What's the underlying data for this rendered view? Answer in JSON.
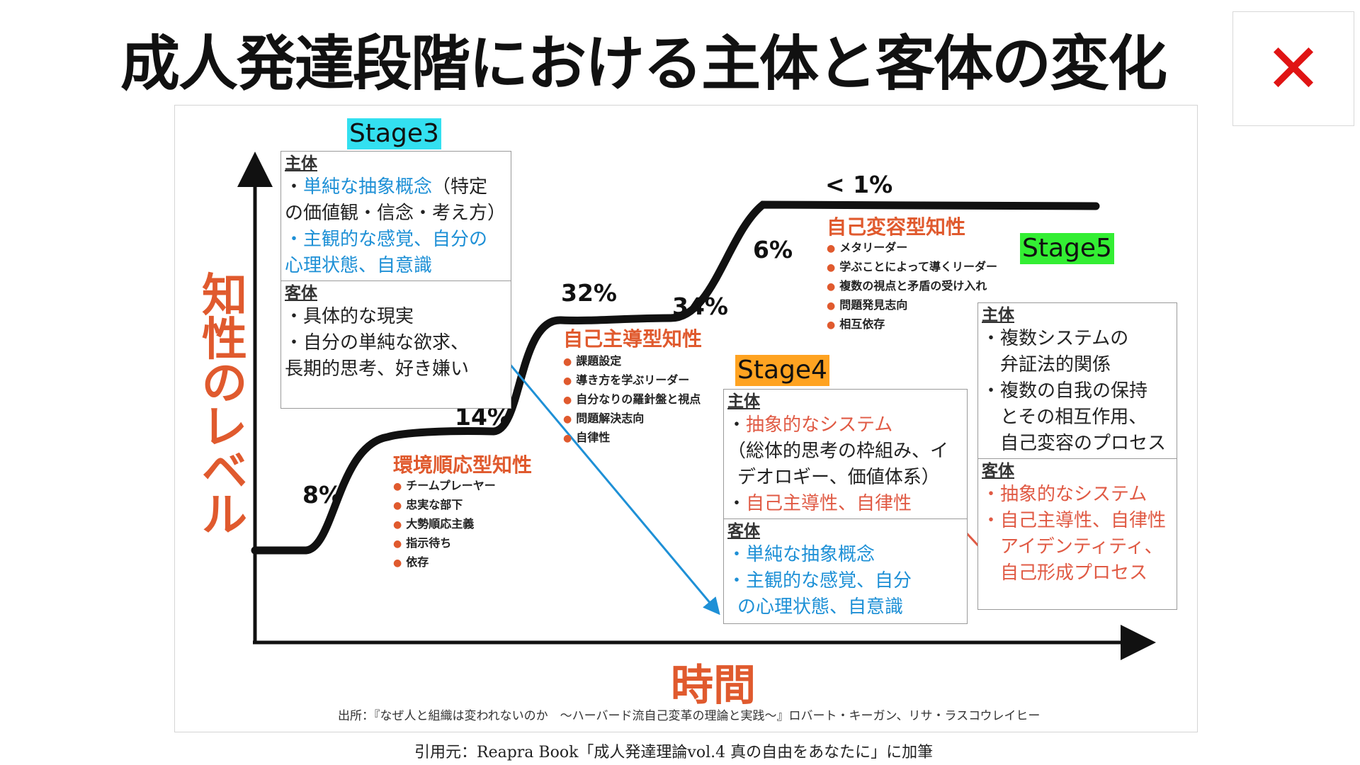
{
  "slide_title": "成人発達段階における主体と客体の変化",
  "close_label": "✕",
  "axes": {
    "y_label": "知性のレベル",
    "x_label": "時間"
  },
  "source_note": "出所：『なぜ人と組織は変われないのか　〜ハーバード流自己変革の理論と実践〜』ロバート・キーガン、リサ・ラスコウレイヒー",
  "citation": "引用元：Reapra Book「成人発達理論vol.4 真の自由をあなたに」に加筆",
  "percentages": {
    "p8": "8%",
    "p14": "14%",
    "p32": "32%",
    "p34": "34%",
    "p6": "6%",
    "p1": "< 1%"
  },
  "stages": {
    "stage3": "Stage3",
    "stage4": "Stage4",
    "stage5": "Stage5"
  },
  "stage_types": [
    {
      "title": "環境順応型知性",
      "items": [
        "チームプレーヤー",
        "忠実な部下",
        "大勢順応主義",
        "指示待ち",
        "依存"
      ]
    },
    {
      "title": "自己主導型知性",
      "items": [
        "課題設定",
        "導き方を学ぶリーダー",
        "自分なりの羅針盤と視点",
        "問題解決志向",
        "自律性"
      ]
    },
    {
      "title": "自己変容型知性",
      "items": [
        "メタリーダー",
        "学ぶことによって導くリーダー",
        "複数の視点と矛盾の受け入れ",
        "問題発見志向",
        "相互依存"
      ]
    }
  ],
  "stage3_box": {
    "subject_head": "主体",
    "subject_lines": [
      "・",
      "単純な抽象概念",
      "（特定",
      "の価値観・信念・考え方）",
      "・主観的な感覚、自分の",
      "心理状態、自意識"
    ],
    "object_head": "客体",
    "object_lines": [
      "・具体的な現実",
      "・自分の単純な欲求、",
      "長期的思考、好き嫌い"
    ]
  },
  "stage4_box": {
    "subject_head": "主体",
    "subject_lines": [
      "・",
      "抽象的なシステム",
      "（総体的思考の枠組み、イ",
      "デオロギー、価値体系）",
      "・",
      "自己主導性、自律性"
    ],
    "object_head": "客体",
    "object_lines": [
      "・単純な抽象概念",
      "・主観的な感覚、自分",
      "の心理状態、自意識"
    ]
  },
  "stage5_box": {
    "subject_head": "主体",
    "subject_lines": [
      "・複数システムの",
      "弁証法的関係",
      "・複数の自我の保持",
      "とその相互作用、",
      "自己変容のプロセス"
    ],
    "object_head": "客体",
    "object_lines": [
      "・抽象的なシステム",
      "・自己主導性、自律性",
      "アイデンティティ、",
      "自己形成プロセス"
    ]
  },
  "colors": {
    "accent_orange": "#e05a2e",
    "blue": "#1e90d6",
    "red_text": "#e05a44",
    "stage3_bg": "#33e0f0",
    "stage4_bg": "#ffa321",
    "stage5_bg": "#33ee33",
    "close_red": "#e01414"
  }
}
